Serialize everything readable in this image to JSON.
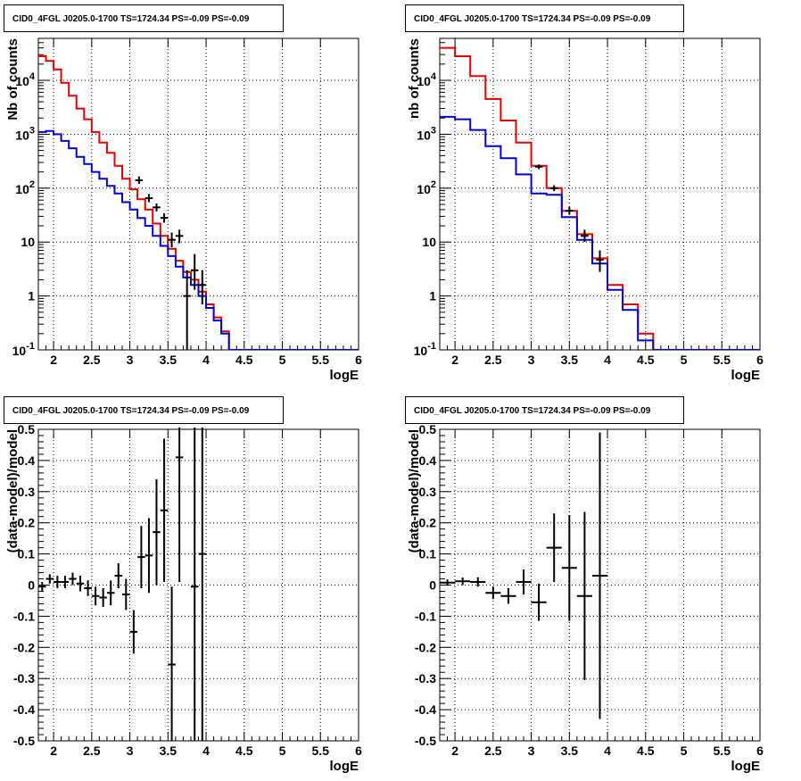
{
  "chart_data": [
    {
      "type": "line",
      "title": "CID0_4FGL J0205.0-1700 TS=1724.34 PS=-0.09 PS=-0.09",
      "xlabel": "logE",
      "ylabel": "Nb of counts",
      "xlim": [
        1.8,
        6.0
      ],
      "ylim": [
        0.1,
        60000
      ],
      "yscale": "log",
      "grid": true,
      "xticks": [
        "2",
        "2.5",
        "3",
        "3.5",
        "4",
        "4.5",
        "5",
        "5.5",
        "6"
      ],
      "yticks": [
        "10^-1",
        "1",
        "10",
        "10^2",
        "10^3",
        "10^4"
      ],
      "bin_edges": [
        1.8,
        1.9,
        2.0,
        2.1,
        2.2,
        2.3,
        2.4,
        2.5,
        2.6,
        2.7,
        2.8,
        2.9,
        3.0,
        3.1,
        3.2,
        3.3,
        3.4,
        3.5,
        3.6,
        3.7,
        3.8,
        3.9,
        4.0,
        4.1,
        4.2,
        4.3,
        4.4,
        4.5,
        4.6,
        4.7,
        4.8,
        4.9,
        5.0,
        5.1,
        5.2,
        5.3,
        5.4,
        5.5,
        5.6,
        5.7,
        5.8,
        5.9,
        6.0
      ],
      "series": [
        {
          "color": "#e00000",
          "values": [
            28000,
            23000,
            16000,
            9000,
            5200,
            3000,
            1900,
            1100,
            700,
            450,
            260,
            150,
            95,
            62,
            40,
            22,
            13,
            7.5,
            4.5,
            2.8,
            2.0,
            1.2,
            0.7,
            0.4,
            0.22,
            0.1,
            0.1,
            0.1,
            0.1,
            0.1,
            0.1,
            0.1,
            0.1,
            0.1,
            0.1,
            0.1,
            0.1,
            0.1,
            0.1,
            0.1,
            0.1,
            0.1
          ]
        },
        {
          "color": "#0000d0",
          "values": [
            1100,
            1150,
            1000,
            750,
            550,
            380,
            280,
            200,
            150,
            110,
            80,
            55,
            40,
            28,
            20,
            13,
            8.5,
            5.5,
            3.5,
            2.2,
            1.6,
            1.0,
            0.6,
            0.35,
            0.2,
            0.1,
            0.1,
            0.1,
            0.1,
            0.1,
            0.1,
            0.1,
            0.1,
            0.1,
            0.1,
            0.1,
            0.1,
            0.1,
            0.1,
            0.1,
            0.1,
            0.1
          ]
        }
      ],
      "data_points": [
        {
          "x": 3.12,
          "y": 140,
          "ylo": 120,
          "yhi": 165
        },
        {
          "x": 3.25,
          "y": 65,
          "ylo": 55,
          "yhi": 78
        },
        {
          "x": 3.35,
          "y": 44,
          "ylo": 37,
          "yhi": 52
        },
        {
          "x": 3.45,
          "y": 28,
          "ylo": 23,
          "yhi": 34
        },
        {
          "x": 3.55,
          "y": 11,
          "ylo": 8,
          "yhi": 15
        },
        {
          "x": 3.65,
          "y": 13,
          "ylo": 9.5,
          "yhi": 17
        },
        {
          "x": 3.75,
          "y": 1,
          "ylo": 0.1,
          "yhi": 3
        },
        {
          "x": 3.85,
          "y": 3,
          "ylo": 1.3,
          "yhi": 6
        },
        {
          "x": 3.95,
          "y": 1.6,
          "ylo": 0.7,
          "yhi": 3
        }
      ]
    },
    {
      "type": "line",
      "title": "CID0_4FGL J0205.0-1700 TS=1724.34 PS=-0.09 PS=-0.09",
      "xlabel": "logE",
      "ylabel": "nb of counts",
      "xlim": [
        1.8,
        6.0
      ],
      "ylim": [
        0.1,
        60000
      ],
      "yscale": "log",
      "grid": true,
      "xticks": [
        "2",
        "2.5",
        "3",
        "3.5",
        "4",
        "4.5",
        "5",
        "5.5",
        "6"
      ],
      "yticks": [
        "10^-1",
        "1",
        "10",
        "10^2",
        "10^3",
        "10^4"
      ],
      "bin_edges": [
        1.8,
        2.0,
        2.2,
        2.4,
        2.6,
        2.8,
        3.0,
        3.2,
        3.4,
        3.6,
        3.8,
        4.0,
        4.2,
        4.4,
        4.6,
        4.8,
        5.0,
        5.2,
        5.4,
        5.6,
        5.8,
        6.0
      ],
      "series": [
        {
          "color": "#e00000",
          "values": [
            40000,
            28000,
            12000,
            4500,
            1800,
            700,
            260,
            100,
            38,
            14,
            5,
            1.6,
            0.7,
            0.2,
            0.1,
            0.1,
            0.1,
            0.1,
            0.1,
            0.1,
            0.1
          ]
        },
        {
          "color": "#0000d0",
          "values": [
            2100,
            1900,
            1200,
            600,
            360,
            180,
            80,
            75,
            29,
            11,
            4,
            1.3,
            0.55,
            0.15,
            0.1,
            0.1,
            0.1,
            0.1,
            0.1,
            0.1,
            0.1
          ]
        }
      ],
      "data_points": [
        {
          "x": 3.1,
          "y": 250,
          "ylo": 225,
          "yhi": 275
        },
        {
          "x": 3.3,
          "y": 100,
          "ylo": 88,
          "yhi": 113
        },
        {
          "x": 3.5,
          "y": 38,
          "ylo": 32,
          "yhi": 45
        },
        {
          "x": 3.7,
          "y": 13,
          "ylo": 10,
          "yhi": 17
        },
        {
          "x": 3.9,
          "y": 4.7,
          "ylo": 2.8,
          "yhi": 7
        }
      ]
    },
    {
      "type": "scatter",
      "title": "CID0_4FGL J0205.0-1700 TS=1724.34 PS=-0.09 PS=-0.09",
      "xlabel": "logE",
      "ylabel": "(data-model)/model",
      "xlim": [
        1.8,
        6.0
      ],
      "ylim": [
        -0.5,
        0.5
      ],
      "grid": true,
      "xticks": [
        "2",
        "2.5",
        "3",
        "3.5",
        "4",
        "4.5",
        "5",
        "5.5",
        "6"
      ],
      "yticks": [
        "-0.5",
        "-0.4",
        "-0.3",
        "-0.2",
        "-0.1",
        "0",
        "0.1",
        "0.2",
        "0.3",
        "0.4",
        "0.5"
      ],
      "xerr": 0.05,
      "points": [
        {
          "x": 1.85,
          "y": -0.005,
          "err": 0.015
        },
        {
          "x": 1.95,
          "y": 0.02,
          "err": 0.015
        },
        {
          "x": 2.05,
          "y": 0.01,
          "err": 0.02
        },
        {
          "x": 2.15,
          "y": 0.01,
          "err": 0.02
        },
        {
          "x": 2.25,
          "y": 0.02,
          "err": 0.02
        },
        {
          "x": 2.35,
          "y": 0.005,
          "err": 0.025
        },
        {
          "x": 2.45,
          "y": -0.01,
          "err": 0.025
        },
        {
          "x": 2.55,
          "y": -0.035,
          "err": 0.03
        },
        {
          "x": 2.65,
          "y": -0.04,
          "err": 0.03
        },
        {
          "x": 2.75,
          "y": -0.025,
          "err": 0.04
        },
        {
          "x": 2.85,
          "y": 0.03,
          "err": 0.04
        },
        {
          "x": 2.95,
          "y": -0.03,
          "err": 0.05
        },
        {
          "x": 3.05,
          "y": -0.15,
          "err": 0.07
        },
        {
          "x": 3.15,
          "y": 0.09,
          "err": 0.1
        },
        {
          "x": 3.25,
          "y": 0.095,
          "err": 0.12
        },
        {
          "x": 3.35,
          "y": 0.17,
          "err": 0.17
        },
        {
          "x": 3.45,
          "y": 0.24,
          "err": 0.23
        },
        {
          "x": 3.55,
          "y": -0.255,
          "err": 0.25
        },
        {
          "x": 3.65,
          "y": 0.41,
          "err": 0.4
        },
        {
          "x": 3.85,
          "y": -0.005,
          "err": 0.55
        },
        {
          "x": 3.95,
          "y": 0.1,
          "err": 0.6
        }
      ]
    },
    {
      "type": "scatter",
      "title": "CID0_4FGL J0205.0-1700 TS=1724.34 PS=-0.09 PS=-0.09",
      "xlabel": "logE",
      "ylabel": "(data-model)/model",
      "xlim": [
        1.8,
        6.0
      ],
      "ylim": [
        -0.5,
        0.5
      ],
      "grid": true,
      "xticks": [
        "2",
        "2.5",
        "3",
        "3.5",
        "4",
        "4.5",
        "5",
        "5.5",
        "6"
      ],
      "yticks": [
        "-0.5",
        "-0.4",
        "-0.3",
        "-0.2",
        "-0.1",
        "0",
        "0.1",
        "0.2",
        "0.3",
        "0.4",
        "0.5"
      ],
      "xerr": 0.1,
      "points": [
        {
          "x": 1.9,
          "y": 0.008,
          "err": 0.01
        },
        {
          "x": 2.1,
          "y": 0.012,
          "err": 0.012
        },
        {
          "x": 2.3,
          "y": 0.01,
          "err": 0.015
        },
        {
          "x": 2.5,
          "y": -0.025,
          "err": 0.02
        },
        {
          "x": 2.7,
          "y": -0.035,
          "err": 0.025
        },
        {
          "x": 2.9,
          "y": 0.01,
          "err": 0.04
        },
        {
          "x": 3.1,
          "y": -0.055,
          "err": 0.06
        },
        {
          "x": 3.3,
          "y": 0.12,
          "err": 0.11
        },
        {
          "x": 3.5,
          "y": 0.055,
          "err": 0.17
        },
        {
          "x": 3.7,
          "y": -0.035,
          "err": 0.27
        },
        {
          "x": 3.9,
          "y": 0.03,
          "err": 0.46
        }
      ]
    }
  ]
}
